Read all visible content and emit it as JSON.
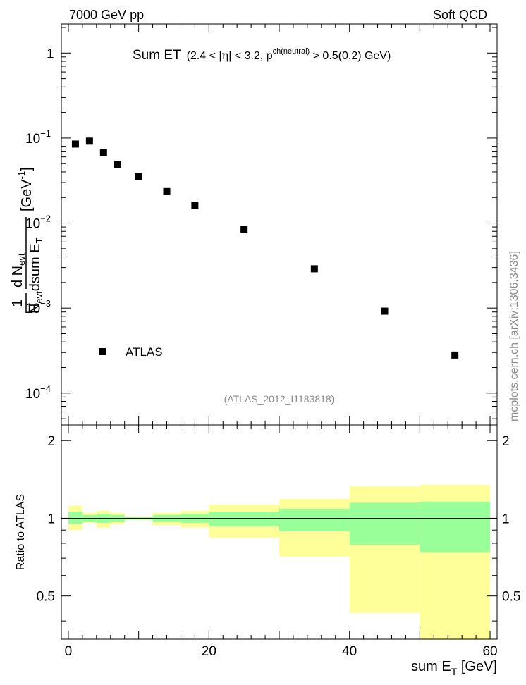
{
  "header": {
    "left_label": "7000 GeV pp",
    "right_label": "Soft QCD"
  },
  "plot_title": {
    "main": "Sum ET",
    "range_prefix": "(2.4 < |",
    "eta": "η",
    "range_mid": "| < 3.2, p",
    "sup": "ch(neutral)",
    "range_suffix": " > 0.5(0.2) GeV)"
  },
  "y_axis_label": {
    "one": "1",
    "n_evt_top": "d N",
    "evt_sub": "evt",
    "n_evt_bottom": "N",
    "dsum": "dsum E",
    "t_sub": "T",
    "unit": "[GeV",
    "unit_sup": "-1",
    "unit_close": "]"
  },
  "side_label": "mcplots.cern.ch [arXiv:1306.3436]",
  "analysis_tag": "(ATLAS_2012_I1183818)",
  "legend": {
    "label": "ATLAS"
  },
  "ratio_axis_label": "Ratio to ATLAS",
  "x_axis_label": {
    "main": "sum E",
    "sub": "T",
    "unit": " [GeV]"
  },
  "colors": {
    "marker": "#000000",
    "band_inner": "#99ff99",
    "band_outer": "#ffff99",
    "axis": "#000000",
    "annotation": "#8c8c8c"
  },
  "chart_data": {
    "type": "scatter",
    "log_y": true,
    "x_range": [
      -1,
      61
    ],
    "main_y_range": [
      4.22e-05,
      2.2
    ],
    "main_y_ticks": [
      {
        "value": 1,
        "label": "1",
        "sup": ""
      },
      {
        "value": 0.1,
        "label": "10",
        "sup": "−1"
      },
      {
        "value": 0.01,
        "label": "10",
        "sup": "−2"
      },
      {
        "value": 0.001,
        "label": "10",
        "sup": "−3"
      },
      {
        "value": 0.0001,
        "label": "10",
        "sup": "−4"
      }
    ],
    "x_ticks": [
      0,
      20,
      40,
      60
    ],
    "series": [
      {
        "name": "ATLAS",
        "points": [
          {
            "x": 1,
            "y": 0.085
          },
          {
            "x": 3,
            "y": 0.092
          },
          {
            "x": 5,
            "y": 0.067
          },
          {
            "x": 7,
            "y": 0.049
          },
          {
            "x": 10,
            "y": 0.035
          },
          {
            "x": 14,
            "y": 0.0235
          },
          {
            "x": 18,
            "y": 0.0162
          },
          {
            "x": 25,
            "y": 0.0085
          },
          {
            "x": 35,
            "y": 0.0029
          },
          {
            "x": 45,
            "y": 0.00092
          },
          {
            "x": 55,
            "y": 0.00028
          }
        ]
      }
    ],
    "ratio": {
      "y_range": [
        0.34,
        2.3
      ],
      "y_ticks": [
        0.5,
        1,
        2
      ],
      "reference_line": 1,
      "bins": [
        {
          "lo": 0,
          "hi": 2,
          "inner": [
            0.95,
            1.06
          ],
          "outer": [
            0.9,
            1.12
          ]
        },
        {
          "lo": 2,
          "hi": 4,
          "inner": [
            0.97,
            1.03
          ],
          "outer": [
            0.96,
            1.05
          ]
        },
        {
          "lo": 4,
          "hi": 6,
          "inner": [
            0.96,
            1.04
          ],
          "outer": [
            0.92,
            1.07
          ]
        },
        {
          "lo": 6,
          "hi": 8,
          "inner": [
            0.97,
            1.03
          ],
          "outer": [
            0.95,
            1.05
          ]
        },
        {
          "lo": 8,
          "hi": 12,
          "inner": [
            0.99,
            1.01
          ],
          "outer": [
            0.985,
            1.015
          ]
        },
        {
          "lo": 12,
          "hi": 16,
          "inner": [
            0.97,
            1.03
          ],
          "outer": [
            0.94,
            1.05
          ]
        },
        {
          "lo": 16,
          "hi": 20,
          "inner": [
            0.96,
            1.04
          ],
          "outer": [
            0.92,
            1.07
          ]
        },
        {
          "lo": 20,
          "hi": 30,
          "inner": [
            0.93,
            1.06
          ],
          "outer": [
            0.84,
            1.13
          ]
        },
        {
          "lo": 30,
          "hi": 40,
          "inner": [
            0.89,
            1.09
          ],
          "outer": [
            0.71,
            1.19
          ]
        },
        {
          "lo": 40,
          "hi": 50,
          "inner": [
            0.79,
            1.15
          ],
          "outer": [
            0.43,
            1.33
          ]
        },
        {
          "lo": 50,
          "hi": 60,
          "inner": [
            0.74,
            1.16
          ],
          "outer": [
            0.34,
            1.35
          ]
        }
      ]
    },
    "title": "Sum ET",
    "xlabel": "sum E_T [GeV]",
    "ylabel": "1/N_evt dN_evt/dsum E_T [GeV^-1]",
    "ratio_ylabel": "Ratio to ATLAS",
    "legend_position": "lower-left"
  }
}
